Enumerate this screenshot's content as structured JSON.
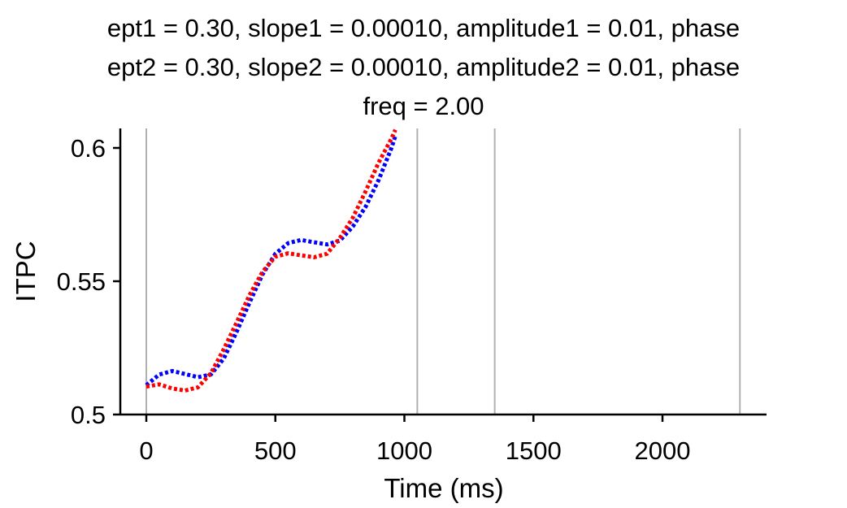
{
  "chart_data": {
    "type": "line",
    "title_lines": [
      "ept1 = 0.30, slope1 = 0.00010, amplitude1 = 0.01, phase",
      "ept2 = 0.30, slope2 = 0.00010, amplitude2 = 0.01, phase",
      "freq = 2.00"
    ],
    "xlabel": "Time (ms)",
    "ylabel": "ITPC",
    "xlim": [
      -100,
      2400
    ],
    "ylim": [
      0.5,
      0.607
    ],
    "xticks": [
      0,
      500,
      1000,
      1500,
      2000
    ],
    "yticks": [
      0.5,
      0.55,
      0.6
    ],
    "ytick_labels": [
      "0.5",
      "0.55",
      "0.6"
    ],
    "vlines": [
      0,
      1050,
      1350,
      2300
    ],
    "vline_color": "#b0b0b0",
    "line_style": "dotted",
    "grid": false,
    "series": [
      {
        "color": "#0000ff",
        "x": [
          0,
          50,
          100,
          150,
          200,
          250,
          300,
          350,
          400,
          450,
          500,
          550,
          600,
          650,
          700,
          750,
          800,
          850,
          900,
          950,
          965
        ],
        "y": [
          0.511,
          0.515,
          0.5163,
          0.5152,
          0.514,
          0.515,
          0.521,
          0.531,
          0.542,
          0.5525,
          0.5603,
          0.5643,
          0.5655,
          0.5646,
          0.5638,
          0.5652,
          0.5705,
          0.578,
          0.588,
          0.6,
          0.6045
        ]
      },
      {
        "color": "#ff0000",
        "x": [
          0,
          50,
          100,
          150,
          200,
          250,
          300,
          350,
          400,
          450,
          500,
          550,
          600,
          650,
          700,
          750,
          800,
          850,
          900,
          950,
          965
        ],
        "y": [
          0.5105,
          0.5113,
          0.5098,
          0.509,
          0.5102,
          0.5155,
          0.5245,
          0.5345,
          0.5448,
          0.5535,
          0.5592,
          0.5605,
          0.5597,
          0.559,
          0.5603,
          0.5662,
          0.5738,
          0.5838,
          0.5945,
          0.6035,
          0.6068
        ]
      }
    ]
  }
}
